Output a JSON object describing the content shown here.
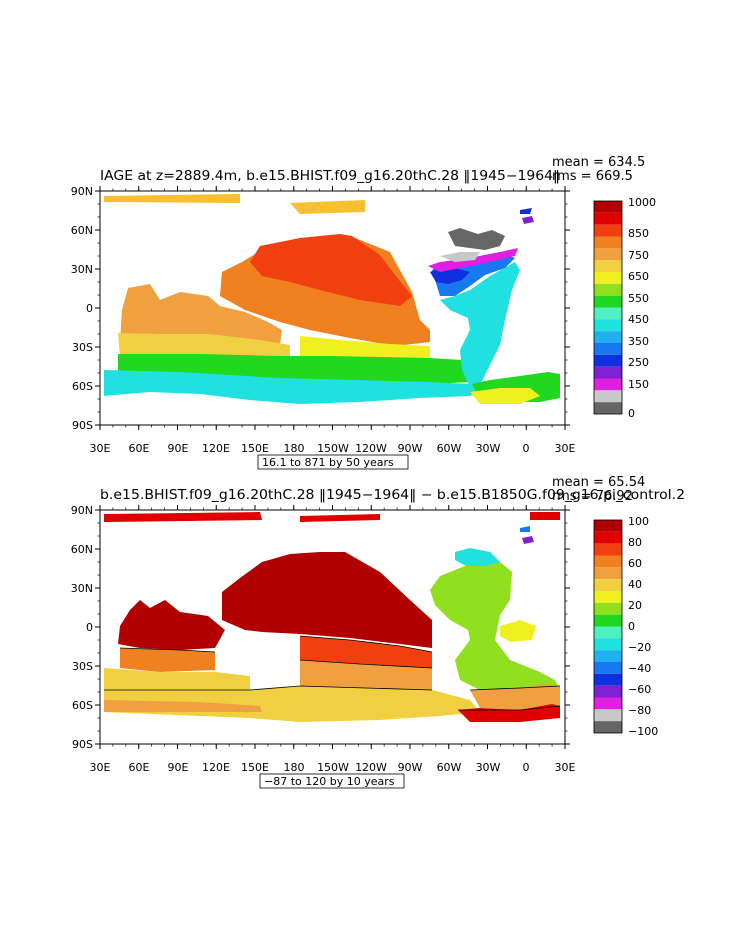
{
  "panel_top": {
    "title": "IAGE at z=2889.4m, b.e15.BHIST.f09_g16.20thC.28 ‖1945−1964‖",
    "mean_text": "mean = 634.5",
    "rms_text": "rms = 669.5",
    "range_note": "16.1 to 871 by 50 years",
    "colorbar_labels": [
      "1000",
      "850",
      "750",
      "650",
      "550",
      "450",
      "350",
      "250",
      "150",
      "0"
    ]
  },
  "panel_bottom": {
    "title": "b.e15.BHIST.f09_g16.20thC.28 ‖1945−1964‖ − b.e15.B1850G.f09_g16.pi_control.2",
    "mean_text": "mean = 65.54",
    "rms_text": "rms = 76.92",
    "range_note": "−87 to 120 by 10 years",
    "colorbar_labels": [
      "100",
      "80",
      "60",
      "40",
      "20",
      "0",
      "−20",
      "−40",
      "−60",
      "−80",
      "−100"
    ]
  },
  "axes": {
    "lat_labels": [
      "90N",
      "60N",
      "30N",
      "0",
      "30S",
      "60S",
      "90S"
    ],
    "lon_labels": [
      "30E",
      "60E",
      "90E",
      "120E",
      "150E",
      "180",
      "150W",
      "120W",
      "90W",
      "60W",
      "30W",
      "0",
      "30E"
    ]
  },
  "chart_data": [
    {
      "type": "heatmap",
      "title": "IAGE at z=2889.4m, b.e15.BHIST.f09_g16.20thC.28 ‖1945−1964‖",
      "xlim": [
        30,
        390
      ],
      "ylim": [
        -90,
        90
      ],
      "mean": 634.5,
      "rms": 669.5,
      "contour_min": 16.1,
      "contour_max": 871,
      "contour_interval": 50,
      "colorbar_levels": [
        0,
        150,
        250,
        350,
        450,
        550,
        650,
        750,
        850,
        1000
      ],
      "colors": [
        "#666666",
        "#c8c8c8",
        "#e020e0",
        "#8020d0",
        "#1030e0",
        "#1878f0",
        "#20b0f0",
        "#20e0e0",
        "#50f0c0",
        "#20d820",
        "#90e020",
        "#f0f020",
        "#f0d040",
        "#f0a040",
        "#f08020",
        "#f04010",
        "#e00000",
        "#b00000"
      ]
    },
    {
      "type": "heatmap",
      "title": "b.e15.BHIST.f09_g16.20thC.28 ‖1945−1964‖ − b.e15.B1850G.f09_g16.pi_control.2",
      "xlim": [
        30,
        390
      ],
      "ylim": [
        -90,
        90
      ],
      "mean": 65.54,
      "rms": 76.92,
      "contour_min": -87,
      "contour_max": 120,
      "contour_interval": 10,
      "colorbar_levels": [
        -100,
        -80,
        -60,
        -40,
        -20,
        0,
        20,
        40,
        60,
        80,
        100
      ],
      "colors": [
        "#666666",
        "#c8c8c8",
        "#e020e0",
        "#8020d0",
        "#1030e0",
        "#1878f0",
        "#20b0f0",
        "#20e0e0",
        "#50f0c0",
        "#20d820",
        "#90e020",
        "#f0f020",
        "#f0d040",
        "#f0a040",
        "#f08020",
        "#f04010",
        "#e00000",
        "#b00000"
      ]
    }
  ]
}
